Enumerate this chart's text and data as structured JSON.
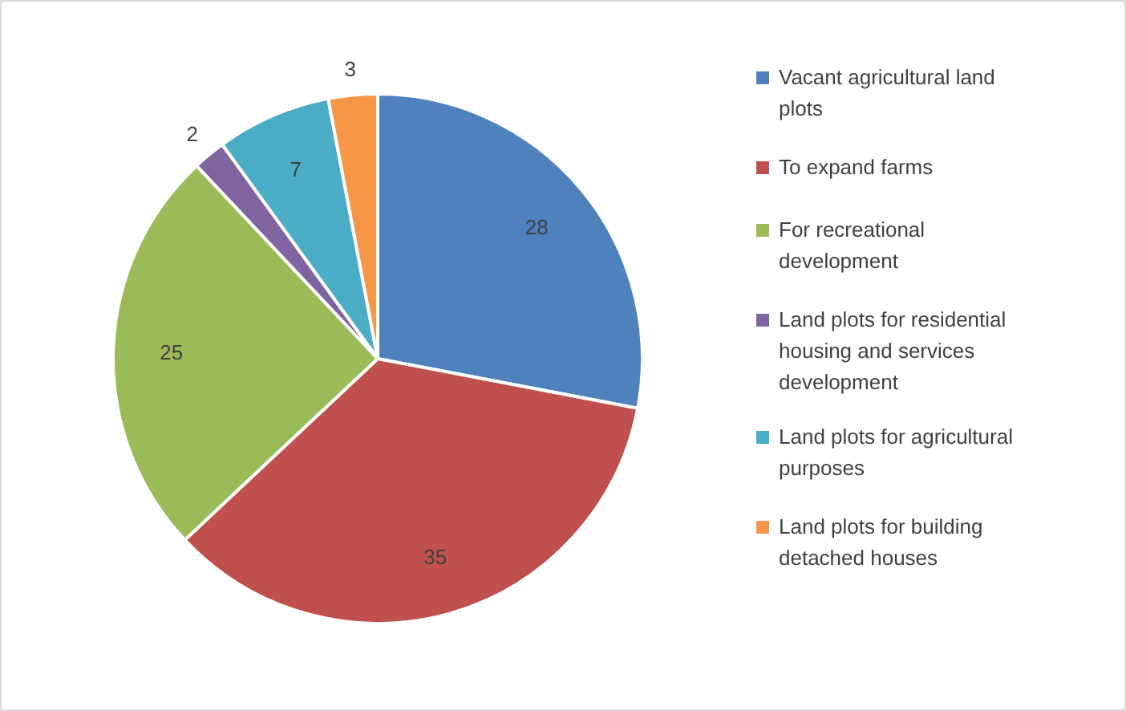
{
  "chart_data": {
    "type": "pie",
    "categories": [
      "Vacant agricultural land plots",
      "To expand farms",
      "For recreational development",
      "Land plots for residential housing and services development",
      "Land plots for agricultural purposes",
      "Land plots for building detached houses"
    ],
    "values": [
      28,
      35,
      25,
      2,
      7,
      3
    ],
    "colors": [
      "#4f81bd",
      "#c0504d",
      "#9bbb59",
      "#8064a2",
      "#4bacc6",
      "#f79646"
    ],
    "data_labels": true,
    "legend": "right"
  }
}
